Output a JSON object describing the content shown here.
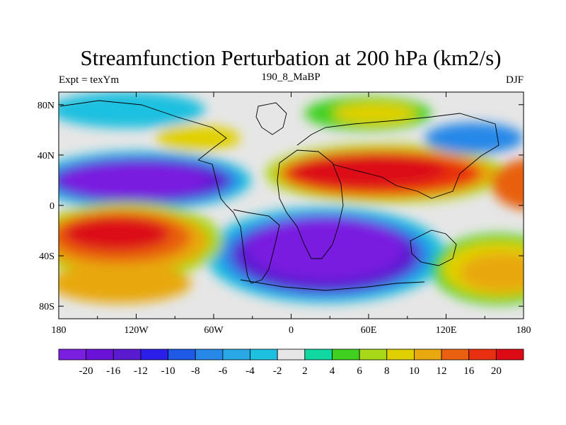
{
  "chart_data": {
    "type": "heatmap",
    "title": "Streamfunction Perturbation at 200 hPa (km2/s)",
    "left_string": "Expt = texYm",
    "center_string": "190_8_MaBP",
    "right_string": "DJF",
    "x_ticks": [
      "180",
      "120W",
      "60W",
      "0",
      "60E",
      "120E",
      "180"
    ],
    "y_ticks": [
      "80N",
      "40N",
      "0",
      "40S",
      "80S"
    ],
    "xlim": [
      -180,
      180
    ],
    "ylim": [
      -90,
      90
    ],
    "colorbar": {
      "labels": [
        "-20",
        "-16",
        "-12",
        "-10",
        "-8",
        "-6",
        "-4",
        "-2",
        "2",
        "4",
        "6",
        "8",
        "10",
        "12",
        "16",
        "20"
      ],
      "colors": [
        "#7a1fe0",
        "#6a12d8",
        "#5a1ad0",
        "#2a1ee8",
        "#1e5ae6",
        "#2888e8",
        "#2aa8e6",
        "#1ec0e0",
        "#e6e6e6",
        "#10d8a0",
        "#40d020",
        "#a8d818",
        "#e0d000",
        "#e8a810",
        "#e86010",
        "#e83010",
        "#dc0a14"
      ]
    },
    "field_levels": [
      {
        "lon": 0,
        "lat": 30,
        "value": 18
      },
      {
        "lon": 40,
        "lat": 22,
        "value": 22
      },
      {
        "lon": 120,
        "lat": 20,
        "value": 16
      },
      {
        "lon": -150,
        "lat": 22,
        "value": -20
      },
      {
        "lon": -110,
        "lat": 18,
        "value": -18
      },
      {
        "lon": -60,
        "lat": 15,
        "value": -10
      },
      {
        "lon": 20,
        "lat": -45,
        "value": -20
      },
      {
        "lon": 60,
        "lat": -40,
        "value": -18
      },
      {
        "lon": -20,
        "lat": -55,
        "value": -16
      },
      {
        "lon": -150,
        "lat": -20,
        "value": 20
      },
      {
        "lon": -150,
        "lat": -55,
        "value": 12
      },
      {
        "lon": 160,
        "lat": -40,
        "value": 12
      },
      {
        "lon": 175,
        "lat": 20,
        "value": 18
      },
      {
        "lon": 40,
        "lat": 70,
        "value": 10
      },
      {
        "lon": -150,
        "lat": 70,
        "value": -4
      },
      {
        "lon": -90,
        "lat": 45,
        "value": 10
      },
      {
        "lon": 150,
        "lat": 40,
        "value": -6
      }
    ]
  }
}
